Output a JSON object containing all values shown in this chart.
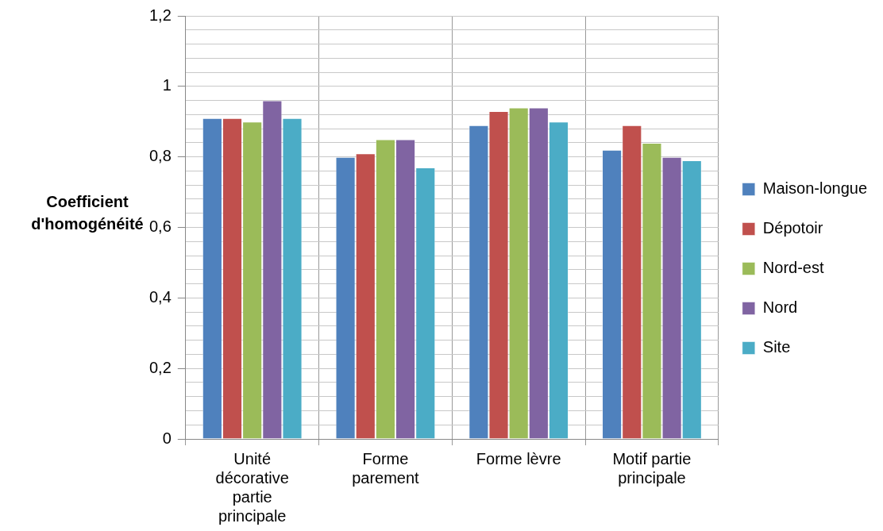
{
  "chart_data": {
    "type": "bar",
    "ylabel": "Coefficient d'homogénéité",
    "categories": [
      "Unité décorative partie principale",
      "Forme parement",
      "Forme lèvre",
      "Motif partie principale"
    ],
    "series": [
      {
        "name": "Maison-longue",
        "color": "#4f81bd",
        "values": [
          0.91,
          0.8,
          0.89,
          0.82
        ]
      },
      {
        "name": "Dépotoir",
        "color": "#c0504d",
        "values": [
          0.91,
          0.81,
          0.93,
          0.89
        ]
      },
      {
        "name": "Nord-est",
        "color": "#9bbb59",
        "values": [
          0.9,
          0.85,
          0.94,
          0.84
        ]
      },
      {
        "name": "Nord",
        "color": "#8064a2",
        "values": [
          0.96,
          0.85,
          0.94,
          0.8
        ]
      },
      {
        "name": "Site",
        "color": "#4bacc6",
        "values": [
          0.91,
          0.77,
          0.9,
          0.79
        ]
      }
    ],
    "ylim": [
      0,
      1.2
    ],
    "yticks": [
      {
        "value": 0,
        "label": "0"
      },
      {
        "value": 0.04,
        "label": null
      },
      {
        "value": 0.08,
        "label": null
      },
      {
        "value": 0.12,
        "label": null
      },
      {
        "value": 0.16,
        "label": null
      },
      {
        "value": 0.2,
        "label": "0,2"
      },
      {
        "value": 0.24,
        "label": null
      },
      {
        "value": 0.28,
        "label": null
      },
      {
        "value": 0.32,
        "label": null
      },
      {
        "value": 0.36,
        "label": null
      },
      {
        "value": 0.4,
        "label": "0,4"
      },
      {
        "value": 0.44,
        "label": null
      },
      {
        "value": 0.48,
        "label": null
      },
      {
        "value": 0.52,
        "label": null
      },
      {
        "value": 0.56,
        "label": null
      },
      {
        "value": 0.6,
        "label": "0,6"
      },
      {
        "value": 0.64,
        "label": null
      },
      {
        "value": 0.68,
        "label": null
      },
      {
        "value": 0.72,
        "label": null
      },
      {
        "value": 0.76,
        "label": null
      },
      {
        "value": 0.8,
        "label": "0,8"
      },
      {
        "value": 0.84,
        "label": null
      },
      {
        "value": 0.88,
        "label": null
      },
      {
        "value": 0.92,
        "label": null
      },
      {
        "value": 0.96,
        "label": null
      },
      {
        "value": 1,
        "label": "1"
      },
      {
        "value": 1.04,
        "label": null
      },
      {
        "value": 1.08,
        "label": null
      },
      {
        "value": 1.12,
        "label": null
      },
      {
        "value": 1.16,
        "label": null
      },
      {
        "value": 1.2,
        "label": "1,2"
      }
    ],
    "grid": true,
    "legend": "right"
  }
}
